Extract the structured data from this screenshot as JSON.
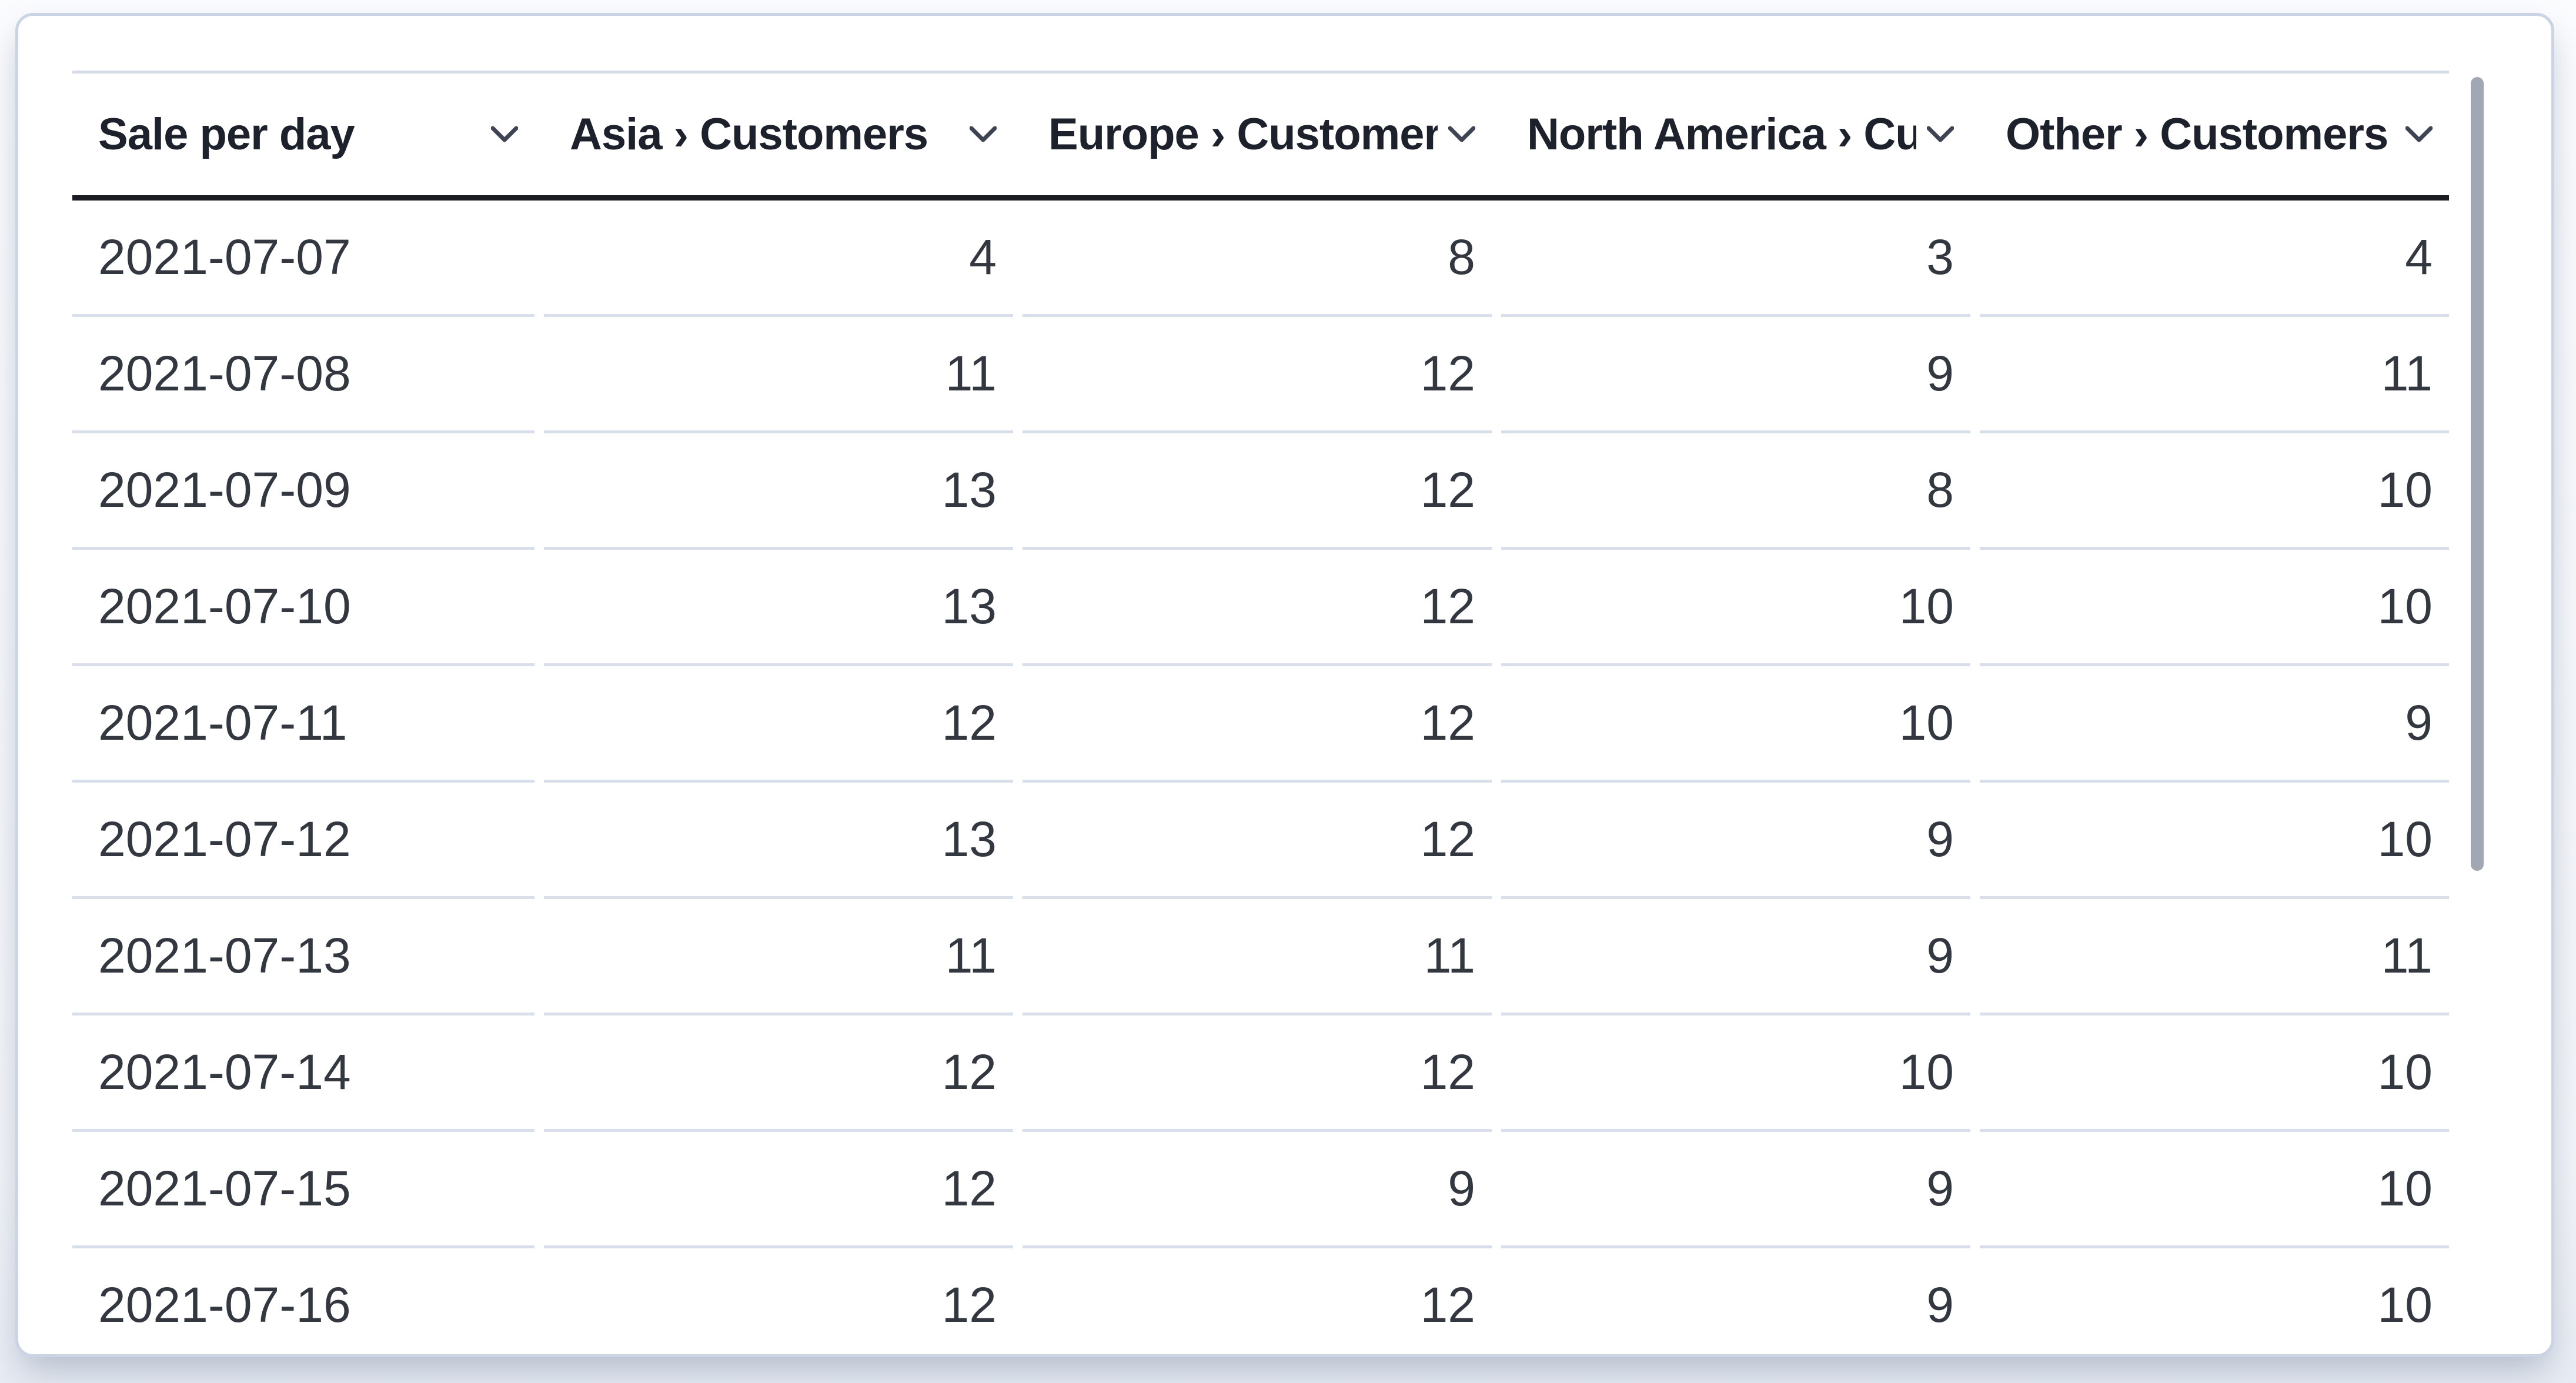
{
  "panel": {
    "type": "data-table-visualization"
  },
  "table": {
    "columns": [
      {
        "label": "Sale per day",
        "align": "left",
        "sort_icon": "chevron-down-icon"
      },
      {
        "label": "Asia › Customers",
        "align": "right",
        "sort_icon": "chevron-down-icon"
      },
      {
        "label": "Europe › Customers",
        "align": "right",
        "sort_icon": "chevron-down-icon"
      },
      {
        "label": "North America › Customers",
        "align": "right",
        "sort_icon": "chevron-down-icon"
      },
      {
        "label": "Other › Customers",
        "align": "right",
        "sort_icon": "chevron-down-icon"
      }
    ],
    "rows": [
      [
        "2021-07-07",
        "4",
        "8",
        "3",
        "4"
      ],
      [
        "2021-07-08",
        "11",
        "12",
        "9",
        "11"
      ],
      [
        "2021-07-09",
        "13",
        "12",
        "8",
        "10"
      ],
      [
        "2021-07-10",
        "13",
        "12",
        "10",
        "10"
      ],
      [
        "2021-07-11",
        "12",
        "12",
        "10",
        "9"
      ],
      [
        "2021-07-12",
        "13",
        "12",
        "9",
        "10"
      ],
      [
        "2021-07-13",
        "11",
        "11",
        "9",
        "11"
      ],
      [
        "2021-07-14",
        "12",
        "12",
        "10",
        "10"
      ],
      [
        "2021-07-15",
        "12",
        "9",
        "9",
        "10"
      ],
      [
        "2021-07-16",
        "12",
        "12",
        "9",
        "10"
      ]
    ],
    "last_row_clipped": true
  },
  "scrollbar": {
    "orientation": "vertical",
    "thumb_color": "#a2a8b3",
    "position": "top"
  },
  "colors": {
    "card_background": "#ffffff",
    "card_border": "#cbd4e4",
    "page_background": "#f3f5f9",
    "header_underline": "#1a1c21",
    "row_separator": "#d8dfeb",
    "header_text": "#1d212b",
    "cell_text": "#33373f",
    "chevron": "#3e4453"
  }
}
